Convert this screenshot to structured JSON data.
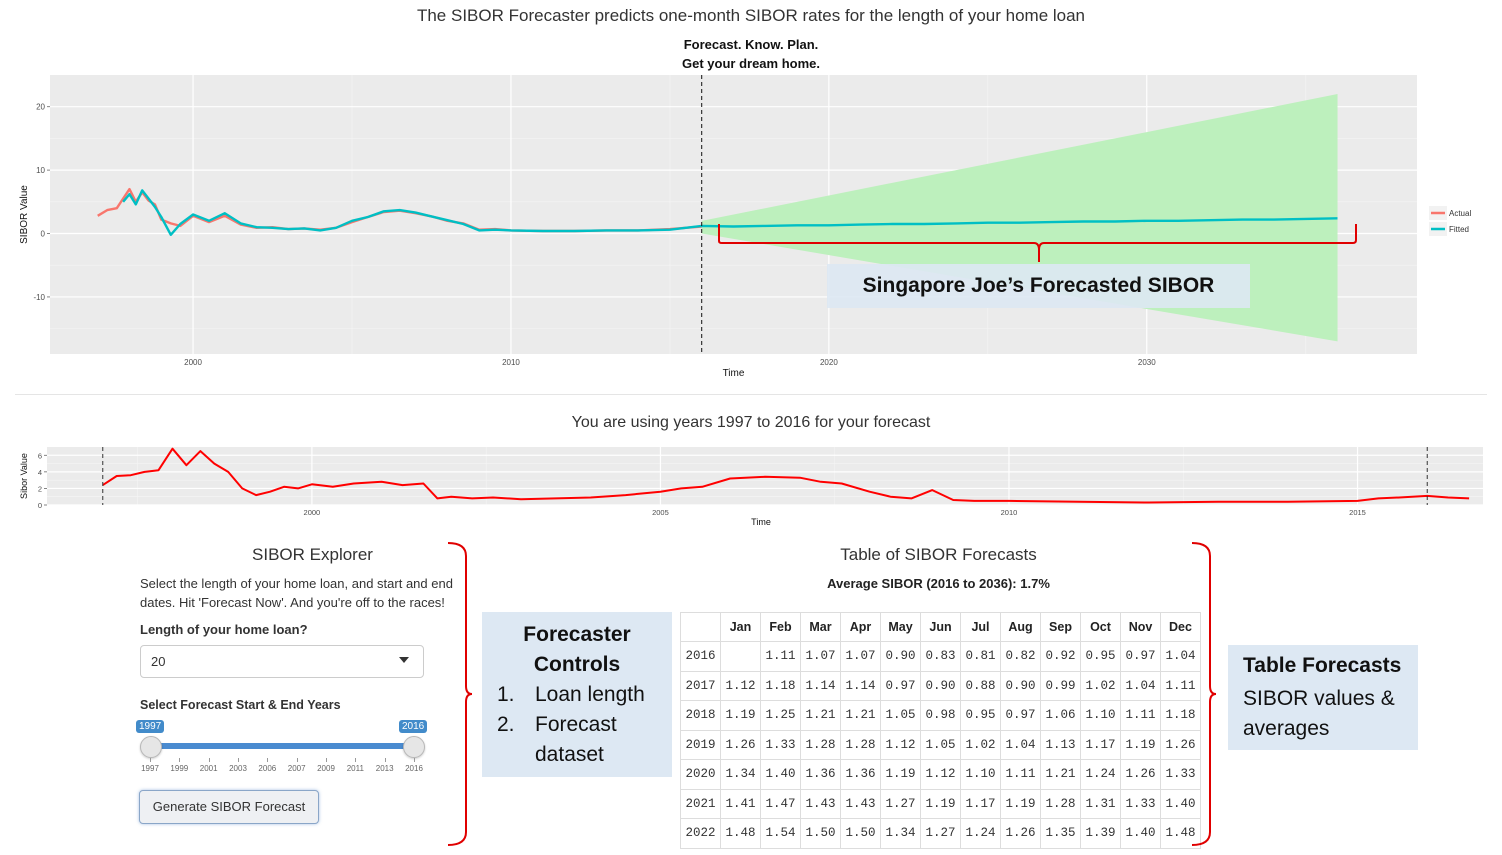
{
  "header": {
    "title": "The SIBOR Forecaster predicts one-month SIBOR rates for the length of your home loan",
    "subtitle_line1": "Forecast. Know. Plan.",
    "subtitle_line2": "Get your dream home."
  },
  "chart_data": [
    {
      "type": "line",
      "title": "Forecast. Know. Plan. Get your dream home.",
      "xlabel": "Time",
      "ylabel": "SIBOR Value",
      "xlim": [
        1995.5,
        2038.5
      ],
      "ylim": [
        -19,
        25
      ],
      "x_ticks": [
        2000,
        2010,
        2020,
        2030
      ],
      "y_ticks": [
        -10,
        0,
        10,
        20
      ],
      "forecast_start_x": 2016,
      "grid": true,
      "legend": {
        "placement": "right",
        "entries": [
          "Actual",
          "Fitted"
        ]
      },
      "series": [
        {
          "name": "Actual",
          "color": "#f8766d",
          "x": [
            1997.0,
            1997.3,
            1997.6,
            1997.8,
            1998.0,
            1998.2,
            1998.4,
            1998.6,
            1998.8,
            1999.0,
            1999.3,
            1999.6,
            2000.0,
            2000.5,
            2001.0,
            2001.5,
            2002.0,
            2002.5,
            2003.0,
            2003.5,
            2004.0,
            2004.5,
            2005.0,
            2005.5,
            2006.0,
            2006.5,
            2007.0,
            2007.5,
            2008.0,
            2008.5,
            2009.0,
            2009.5,
            2010.0,
            2011.0,
            2012.0,
            2013.0,
            2014.0,
            2015.0,
            2015.5,
            2016.0
          ],
          "y": [
            2.8,
            3.7,
            4.0,
            5.5,
            7.0,
            5.0,
            6.5,
            5.2,
            4.6,
            2.2,
            1.6,
            1.2,
            2.8,
            1.8,
            2.8,
            1.4,
            0.9,
            1.0,
            0.7,
            0.8,
            0.6,
            0.9,
            1.8,
            2.6,
            3.4,
            3.6,
            3.2,
            2.7,
            2.0,
            1.6,
            0.6,
            0.7,
            0.5,
            0.4,
            0.4,
            0.5,
            0.5,
            0.7,
            0.9,
            1.1
          ]
        },
        {
          "name": "Fitted",
          "color": "#00bfc4",
          "x": [
            1997.8,
            1998.0,
            1998.2,
            1998.4,
            1998.6,
            1998.8,
            1999.0,
            1999.3,
            1999.6,
            2000.0,
            2000.5,
            2001.0,
            2001.5,
            2002.0,
            2002.5,
            2003.0,
            2003.5,
            2004.0,
            2004.5,
            2005.0,
            2005.5,
            2006.0,
            2006.5,
            2007.0,
            2007.5,
            2008.0,
            2008.5,
            2009.0,
            2009.5,
            2010.0,
            2011.0,
            2012.0,
            2013.0,
            2014.0,
            2015.0,
            2015.5,
            2016.0,
            2017.0,
            2018.0,
            2019.0,
            2020.0,
            2021.0,
            2022.0,
            2023.0,
            2024.0,
            2025.0,
            2026.0,
            2027.0,
            2028.0,
            2029.0,
            2030.0,
            2031.0,
            2032.0,
            2033.0,
            2034.0,
            2035.0,
            2036.0
          ],
          "y": [
            5.0,
            6.2,
            4.6,
            6.8,
            5.5,
            4.2,
            2.6,
            -0.2,
            1.5,
            3.0,
            2.0,
            3.2,
            1.6,
            1.0,
            0.9,
            0.7,
            0.8,
            0.5,
            0.9,
            2.0,
            2.6,
            3.5,
            3.7,
            3.3,
            2.7,
            2.1,
            1.5,
            0.5,
            0.6,
            0.5,
            0.4,
            0.4,
            0.5,
            0.5,
            0.6,
            0.9,
            1.2,
            1.1,
            1.2,
            1.3,
            1.3,
            1.4,
            1.5,
            1.5,
            1.6,
            1.7,
            1.7,
            1.8,
            1.9,
            1.9,
            2.0,
            2.0,
            2.1,
            2.2,
            2.2,
            2.3,
            2.4
          ]
        }
      ],
      "band": {
        "name": "Forecast interval",
        "color": "#bdf0bd",
        "x": [
          2016,
          2036
        ],
        "upper": [
          2.0,
          22.0
        ],
        "lower": [
          0.0,
          -17.0
        ]
      },
      "annotation": "Singapore Joe’s Forecasted SIBOR"
    },
    {
      "type": "line",
      "title": "You are using years 1997 to 2016 for your forecast",
      "xlabel": "Time",
      "ylabel": "Sibor Value",
      "xlim": [
        1996.2,
        2016.8
      ],
      "ylim": [
        0,
        7
      ],
      "x_ticks": [
        2000,
        2005,
        2010,
        2015
      ],
      "y_ticks": [
        0,
        2,
        4,
        6
      ],
      "range_markers": [
        1997,
        2016
      ],
      "grid": true,
      "series": [
        {
          "name": "",
          "color": "#ff0000",
          "x": [
            1997.0,
            1997.2,
            1997.4,
            1997.6,
            1997.8,
            1998.0,
            1998.2,
            1998.4,
            1998.6,
            1998.8,
            1999.0,
            1999.2,
            1999.4,
            1999.6,
            1999.8,
            2000.0,
            2000.3,
            2000.6,
            2001.0,
            2001.3,
            2001.6,
            2001.8,
            2002.0,
            2002.3,
            2002.6,
            2003.0,
            2003.5,
            2004.0,
            2004.5,
            2005.0,
            2005.3,
            2005.6,
            2006.0,
            2006.5,
            2007.0,
            2007.3,
            2007.6,
            2008.0,
            2008.3,
            2008.6,
            2008.9,
            2009.2,
            2009.5,
            2010.0,
            2011.0,
            2012.0,
            2013.0,
            2014.0,
            2015.0,
            2015.3,
            2015.6,
            2016.0,
            2016.3,
            2016.6
          ],
          "y": [
            2.4,
            3.5,
            3.6,
            4.0,
            4.2,
            6.8,
            4.8,
            6.5,
            5.0,
            4.0,
            2.0,
            1.2,
            1.6,
            2.2,
            2.0,
            2.5,
            2.2,
            2.6,
            2.8,
            2.4,
            2.6,
            0.8,
            1.0,
            0.8,
            0.9,
            0.7,
            0.8,
            0.9,
            1.2,
            1.6,
            2.0,
            2.2,
            3.2,
            3.4,
            3.3,
            2.8,
            2.6,
            1.6,
            1.0,
            0.8,
            1.8,
            0.6,
            0.5,
            0.5,
            0.4,
            0.3,
            0.4,
            0.4,
            0.5,
            0.8,
            0.9,
            1.1,
            0.9,
            0.8
          ]
        }
      ]
    }
  ],
  "lower_chart": {
    "title": "You are using years 1997 to 2016 for your forecast"
  },
  "explorer": {
    "title": "SIBOR Explorer",
    "description": "Select the length of your home loan, and start and end dates. Hit 'Forecast Now'. And you're off to the races!",
    "loan_label": "Length of your home loan?",
    "loan_value": "20",
    "years_label": "Select Forecast Start & End Years",
    "slider_min_value": 1997,
    "slider_max_value": 2016,
    "slider_from_badge": "1997",
    "slider_to_badge": "2016",
    "slider_ticks": [
      "1997",
      "1999",
      "2001",
      "2003",
      "2006",
      "2007",
      "2009",
      "2011",
      "2013",
      "2016"
    ],
    "generate_label": "Generate SIBOR Forecast"
  },
  "table": {
    "title": "Table of SIBOR Forecasts",
    "average": "Average SIBOR (2016 to 2036): 1.7%",
    "columns": [
      "",
      "Jan",
      "Feb",
      "Mar",
      "Apr",
      "May",
      "Jun",
      "Jul",
      "Aug",
      "Sep",
      "Oct",
      "Nov",
      "Dec"
    ],
    "rows": [
      [
        "2016",
        "",
        "1.11",
        "1.07",
        "1.07",
        "0.90",
        "0.83",
        "0.81",
        "0.82",
        "0.92",
        "0.95",
        "0.97",
        "1.04"
      ],
      [
        "2017",
        "1.12",
        "1.18",
        "1.14",
        "1.14",
        "0.97",
        "0.90",
        "0.88",
        "0.90",
        "0.99",
        "1.02",
        "1.04",
        "1.11"
      ],
      [
        "2018",
        "1.19",
        "1.25",
        "1.21",
        "1.21",
        "1.05",
        "0.98",
        "0.95",
        "0.97",
        "1.06",
        "1.10",
        "1.11",
        "1.18"
      ],
      [
        "2019",
        "1.26",
        "1.33",
        "1.28",
        "1.28",
        "1.12",
        "1.05",
        "1.02",
        "1.04",
        "1.13",
        "1.17",
        "1.19",
        "1.26"
      ],
      [
        "2020",
        "1.34",
        "1.40",
        "1.36",
        "1.36",
        "1.19",
        "1.12",
        "1.10",
        "1.11",
        "1.21",
        "1.24",
        "1.26",
        "1.33"
      ],
      [
        "2021",
        "1.41",
        "1.47",
        "1.43",
        "1.43",
        "1.27",
        "1.19",
        "1.17",
        "1.19",
        "1.28",
        "1.31",
        "1.33",
        "1.40"
      ],
      [
        "2022",
        "1.48",
        "1.54",
        "1.50",
        "1.50",
        "1.34",
        "1.27",
        "1.24",
        "1.26",
        "1.35",
        "1.39",
        "1.40",
        "1.48"
      ]
    ]
  },
  "annotations": {
    "forecasted": "Singapore Joe’s Forecasted SIBOR",
    "controls_title_1": "Forecaster",
    "controls_title_2": "Controls",
    "controls_items": [
      "Loan length",
      "Forecast",
      "dataset"
    ],
    "controls_numbers": [
      "1.",
      "2."
    ],
    "table_title": "Table Forecasts",
    "table_body": "SIBOR values & averages"
  },
  "colors": {
    "panel_bg": "#ebebeb",
    "actual": "#f8766d",
    "fitted": "#00bfc4",
    "band": "#bdf0bd",
    "lower_series": "#ff0000",
    "brace": "#e00000",
    "note_bg": "#dde8f3",
    "slider": "#428bca"
  }
}
